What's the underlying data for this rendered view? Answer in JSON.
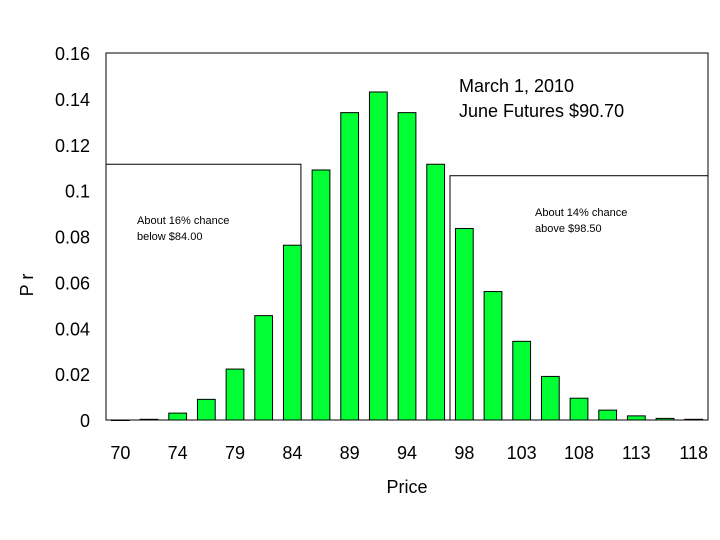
{
  "chart_data": {
    "type": "bar",
    "xlabel": "Price",
    "ylabel": "P r",
    "ylim": [
      0,
      0.16
    ],
    "yticks": [
      "0",
      "0.02",
      "0.04",
      "0.06",
      "0.08",
      "0.1",
      "0.12",
      "0.14",
      "0.16"
    ],
    "xticks": [
      "70",
      "74",
      "79",
      "84",
      "89",
      "94",
      "98",
      "103",
      "108",
      "113",
      "118"
    ],
    "bar_color": "#00ff33",
    "grid": false,
    "bins": [
      70,
      72.5,
      74,
      76.5,
      79,
      81.5,
      84,
      86.5,
      89,
      91.5,
      94,
      96.5,
      98,
      100.5,
      103,
      105.5,
      108,
      110.5,
      113,
      115.5,
      118
    ],
    "values": [
      0.0,
      0.0003,
      0.003,
      0.009,
      0.0222,
      0.0455,
      0.0762,
      0.109,
      0.134,
      0.143,
      0.134,
      0.1115,
      0.0835,
      0.056,
      0.0343,
      0.019,
      0.0095,
      0.0043,
      0.0018,
      0.0007,
      0.0003
    ],
    "annotations": {
      "title_line1": "March 1, 2010",
      "title_line2": "June Futures $90.70",
      "left_line1": "About 16% chance",
      "left_line2": "below $84.00",
      "right_line1": "About 14% chance",
      "right_line2": "above $98.50"
    },
    "shaded_regions": [
      {
        "from": 70,
        "to": 84,
        "level": 0.1115
      },
      {
        "from": 98,
        "to": 118,
        "level": 0.1065
      }
    ]
  }
}
